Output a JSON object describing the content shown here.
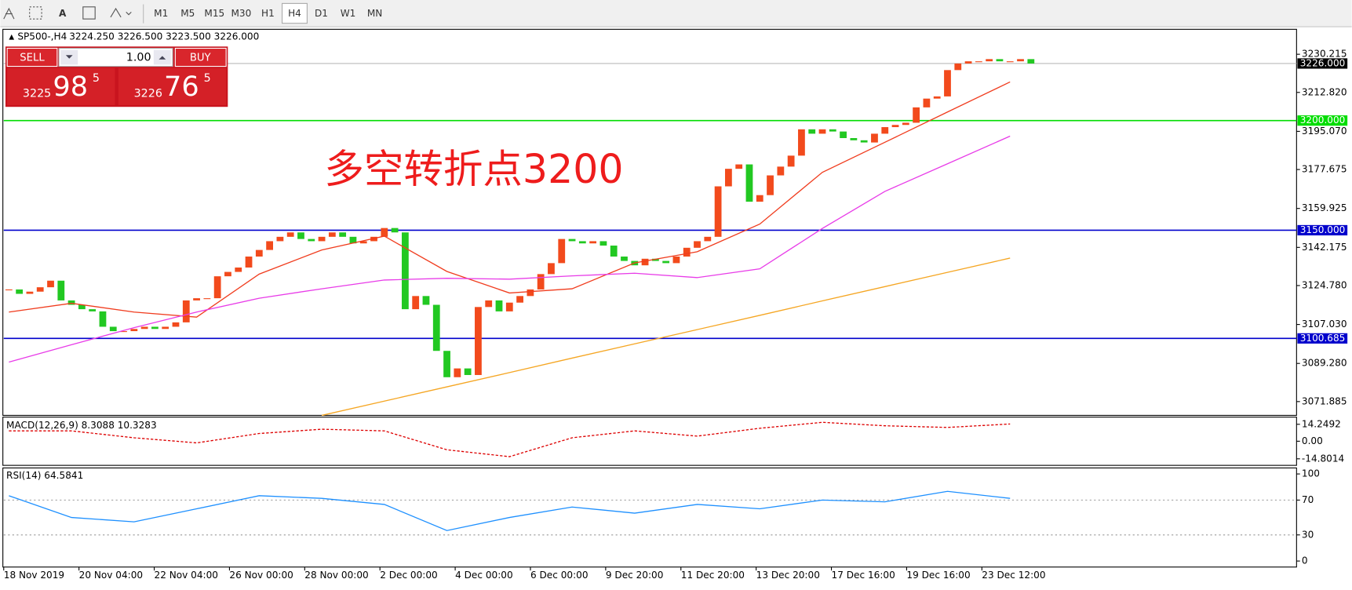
{
  "window": {
    "timeframes": [
      "M1",
      "M5",
      "M15",
      "M30",
      "H1",
      "H4",
      "D1",
      "W1",
      "MN"
    ],
    "active": "H4",
    "symbol": "SP500-,H4",
    "ohlc": "3224.250 3226.500 3223.500 3226.000"
  },
  "trade_panel": {
    "sell": "SELL",
    "buy": "BUY",
    "volume": "1.00",
    "bid": {
      "prefix": "3225",
      "big": "98",
      "pip": "5"
    },
    "ask": {
      "prefix": "3226",
      "big": "76",
      "pip": "5"
    }
  },
  "annotation": "多空转折点3200",
  "chart_data": [
    {
      "type": "candlestick",
      "closes": [
        3123,
        3121,
        3122,
        3124,
        3127,
        3118,
        3116,
        3114,
        3113,
        3106,
        3104,
        3104,
        3105,
        3106,
        3105,
        3106,
        3108,
        3118,
        3119,
        3119,
        3129,
        3131,
        3133,
        3138,
        3141,
        3145,
        3147,
        3149,
        3146,
        3145,
        3147,
        3149,
        3147,
        3144,
        3145,
        3147,
        3151,
        3149,
        3114,
        3120,
        3116,
        3095,
        3083,
        3087,
        3084,
        3115,
        3118,
        3113,
        3117,
        3120,
        3123,
        3130,
        3135,
        3146,
        3145,
        3144,
        3145,
        3143,
        3138,
        3136,
        3134,
        3137,
        3136,
        3135,
        3138,
        3142,
        3145,
        3147,
        3170,
        3178,
        3180,
        3163,
        3166,
        3175,
        3179,
        3184,
        3196,
        3194,
        3196,
        3195,
        3192,
        3191,
        3190,
        3194,
        3197,
        3198,
        3199,
        3206,
        3210,
        3211,
        3223,
        3226,
        3227,
        3227,
        3228,
        3227,
        3227,
        3228,
        3226
      ],
      "up_color": "#f24a1c",
      "down_color": "#22c822",
      "lines": [
        {
          "color": "#f03c1e",
          "values": [
            3112.7,
            3116.7,
            3112.7,
            3110.4,
            3130.0,
            3141.0,
            3147.3,
            3131.2,
            3121.4,
            3123.3,
            3135.1,
            3140.2,
            3152.8,
            3176.4,
            3190.1,
            3203.9,
            3217.6
          ]
        },
        {
          "color": "#e83ce8",
          "values": [
            3089.9,
            3097.8,
            3105.6,
            3112.7,
            3119.0,
            3123.3,
            3127.3,
            3128.1,
            3127.7,
            3129.2,
            3130.4,
            3128.4,
            3132.4,
            3150.8,
            3167.7,
            3180.3,
            3192.9
          ]
        },
        {
          "color": "#f5a623",
          "values": [
            null,
            null,
            null,
            null,
            null,
            3065.6,
            3072.1,
            3078.6,
            3085.1,
            3091.7,
            3098.2,
            3104.7,
            3111.2,
            3117.8,
            3124.3,
            3130.8,
            3137.3
          ]
        }
      ],
      "ylim": [
        3065.6,
        3241.2
      ],
      "yticks": [
        3230.215,
        {
          "value": 3212.82,
          "label": "3212.820"
        },
        {
          "value": 3195.07,
          "label": "3195.070"
        },
        3177.675,
        3159.925,
        3142.175,
        {
          "value": 3124.78,
          "label": "3124.780"
        },
        {
          "value": 3107.03,
          "label": "3107.030"
        },
        {
          "value": 3089.28,
          "label": "3089.280"
        },
        3071.885
      ],
      "levels": [
        {
          "value": 3200,
          "label": "3200.000",
          "color": "#00dd00"
        },
        {
          "value": 3150,
          "label": "3150.000",
          "color": "#0000cc"
        },
        {
          "value": 3100.685,
          "label": "3100.685",
          "color": "#0000cc"
        }
      ],
      "current": {
        "value": 3226,
        "label": "3226.000"
      },
      "xtick_labels": [
        "18 Nov 2019",
        "20 Nov 04:00",
        "22 Nov 04:00",
        "26 Nov 00:00",
        "28 Nov 00:00",
        "2 Dec 00:00",
        "4 Dec 00:00",
        "6 Dec 00:00",
        "9 Dec 20:00",
        "11 Dec 20:00",
        "13 Dec 20:00",
        "17 Dec 16:00",
        "19 Dec 16:00",
        "23 Dec 12:00"
      ]
    },
    {
      "type": "line",
      "title": "MACD(12,26,9) 8.3088 10.3283",
      "color": "#dd0000",
      "values": [
        8.7,
        8.7,
        2.9,
        -1.4,
        6.5,
        10.1,
        8.7,
        -7.2,
        -13.0,
        2.9,
        8.7,
        4.3,
        10.9,
        15.9,
        13.0,
        11.6,
        14.5
      ],
      "ylim": [
        -20.3,
        20.3
      ],
      "yticks": [
        14.2492,
        {
          "value": 0,
          "label": "0.00"
        },
        -14.8014
      ]
    },
    {
      "type": "line",
      "title": "RSI(14) 64.5841",
      "color": "#1e90ff",
      "values": [
        75,
        50,
        45,
        60,
        75,
        72,
        65,
        35,
        50,
        62,
        55,
        65,
        60,
        70,
        68,
        80,
        72
      ],
      "ylim": [
        -6.9,
        106.9
      ],
      "yticks": [
        100,
        70,
        30,
        0
      ],
      "levels": [
        70,
        30
      ]
    }
  ]
}
